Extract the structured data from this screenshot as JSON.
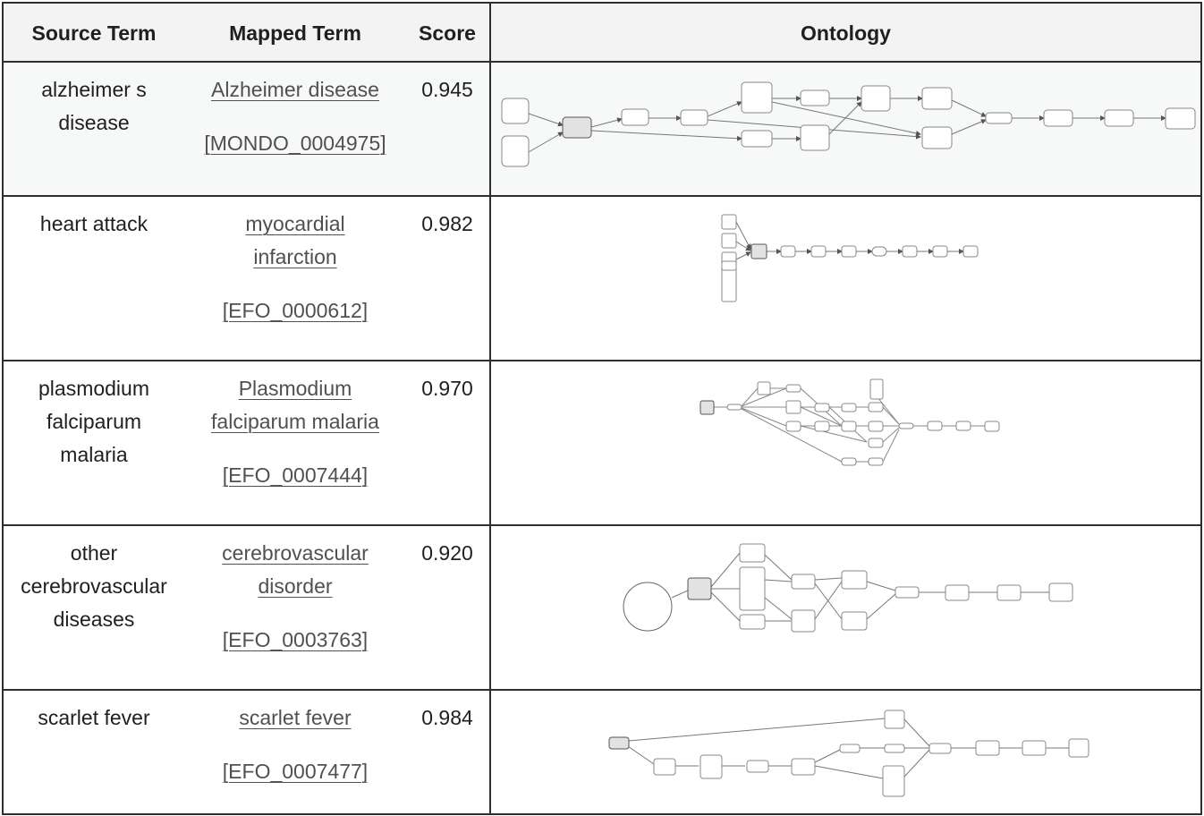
{
  "headers": {
    "source_term": "Source Term",
    "mapped_term": "Mapped Term",
    "score": "Score",
    "ontology": "Ontology"
  },
  "rows": [
    {
      "source_term": [
        "alzheimer s",
        "disease"
      ],
      "mapped_term": [
        "Alzheimer disease"
      ],
      "ontology_id": "[MONDO_0004975]",
      "score": "0.945"
    },
    {
      "source_term": [
        "heart attack"
      ],
      "mapped_term": [
        "myocardial",
        "infarction"
      ],
      "ontology_id": "[EFO_0000612]",
      "score": "0.982"
    },
    {
      "source_term": [
        "plasmodium",
        "falciparum",
        "malaria"
      ],
      "mapped_term": [
        "Plasmodium",
        "falciparum malaria"
      ],
      "ontology_id": "[EFO_0007444]",
      "score": "0.970"
    },
    {
      "source_term": [
        "other",
        "cerebrovascular",
        "diseases"
      ],
      "mapped_term": [
        "cerebrovascular",
        "disorder"
      ],
      "ontology_id": "[EFO_0003763]",
      "score": "0.920"
    },
    {
      "source_term": [
        "scarlet fever"
      ],
      "mapped_term": [
        "scarlet fever"
      ],
      "ontology_id": "[EFO_0007477]",
      "score": "0.984"
    }
  ],
  "colors": {
    "border": "#2e2e2e",
    "header_bg": "#f3f3f3",
    "link": "#505050",
    "node_highlight": "#e2e2e2",
    "edge": "#707070"
  }
}
